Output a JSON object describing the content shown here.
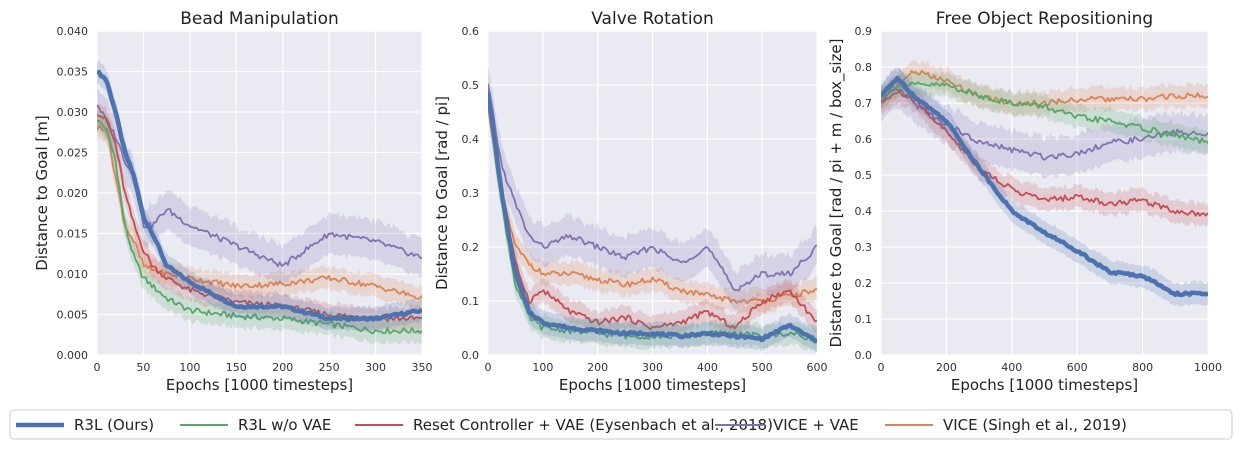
{
  "legend": [
    {
      "name": "R3L (Ours)",
      "color": "#4c72b0"
    },
    {
      "name": "R3L w/o VAE",
      "color": "#55a868"
    },
    {
      "name": "Reset Controller + VAE (Eysenbach et al., 2018)",
      "color": "#c44e52"
    },
    {
      "name": "VICE + VAE",
      "color": "#8172b2"
    },
    {
      "name": "VICE (Singh et al., 2019)",
      "color": "#dd8452"
    }
  ],
  "chart_data": [
    {
      "type": "line",
      "title": "Bead Manipulation",
      "xlabel": "Epochs [1000 timesteps]",
      "ylabel": "Distance to Goal [m]",
      "xlim": [
        0,
        350
      ],
      "ylim": [
        0,
        0.04
      ],
      "grid": true,
      "xticks": [
        "0",
        "50",
        "100",
        "150",
        "200",
        "250",
        "300",
        "350"
      ],
      "yticks": [
        "0.000",
        "0.005",
        "0.010",
        "0.015",
        "0.020",
        "0.025",
        "0.030",
        "0.035",
        "0.040"
      ],
      "x": [
        0,
        10,
        20,
        30,
        40,
        50,
        60,
        75,
        100,
        150,
        200,
        250,
        300,
        350
      ],
      "series": [
        {
          "name": "R3L (Ours)",
          "values": [
            0.035,
            0.034,
            0.03,
            0.025,
            0.022,
            0.017,
            0.015,
            0.011,
            0.009,
            0.006,
            0.006,
            0.0045,
            0.0045,
            0.0055
          ]
        },
        {
          "name": "R3L w/o VAE",
          "values": [
            0.029,
            0.028,
            0.024,
            0.016,
            0.012,
            0.0095,
            0.0085,
            0.007,
            0.0055,
            0.0048,
            0.0045,
            0.0038,
            0.003,
            0.003
          ]
        },
        {
          "name": "Reset Controller + VAE (Eysenbach et al., 2018)",
          "values": [
            0.03,
            0.029,
            0.026,
            0.02,
            0.016,
            0.013,
            0.011,
            0.0095,
            0.008,
            0.0065,
            0.006,
            0.005,
            0.0045,
            0.0045
          ]
        },
        {
          "name": "VICE + VAE",
          "values": [
            0.031,
            0.029,
            0.027,
            0.024,
            0.022,
            0.016,
            0.016,
            0.018,
            0.016,
            0.0135,
            0.011,
            0.015,
            0.014,
            0.012
          ]
        },
        {
          "name": "VICE (Singh et al., 2019)",
          "values": [
            0.028,
            0.028,
            0.022,
            0.016,
            0.014,
            0.011,
            0.0105,
            0.01,
            0.0095,
            0.0085,
            0.0088,
            0.0095,
            0.0085,
            0.007
          ]
        }
      ]
    },
    {
      "type": "line",
      "title": "Valve Rotation",
      "xlabel": "Epochs [1000 timesteps]",
      "ylabel": "Distance to Goal [rad / pi]",
      "xlim": [
        0,
        600
      ],
      "ylim": [
        0,
        0.6
      ],
      "grid": true,
      "xticks": [
        "0",
        "100",
        "200",
        "300",
        "400",
        "500",
        "600"
      ],
      "yticks": [
        "0.0",
        "0.1",
        "0.2",
        "0.3",
        "0.4",
        "0.5",
        "0.6"
      ],
      "x": [
        0,
        25,
        50,
        75,
        100,
        150,
        200,
        250,
        300,
        350,
        400,
        450,
        500,
        550,
        600
      ],
      "series": [
        {
          "name": "R3L (Ours)",
          "values": [
            0.49,
            0.3,
            0.15,
            0.08,
            0.06,
            0.05,
            0.045,
            0.04,
            0.04,
            0.035,
            0.04,
            0.035,
            0.03,
            0.055,
            0.025
          ]
        },
        {
          "name": "R3L w/o VAE",
          "values": [
            0.47,
            0.28,
            0.13,
            0.07,
            0.05,
            0.045,
            0.04,
            0.035,
            0.035,
            0.035,
            0.04,
            0.04,
            0.035,
            0.04,
            0.03
          ]
        },
        {
          "name": "Reset Controller + VAE (Eysenbach et al., 2018)",
          "values": [
            0.48,
            0.3,
            0.17,
            0.1,
            0.12,
            0.08,
            0.06,
            0.07,
            0.05,
            0.06,
            0.08,
            0.05,
            0.1,
            0.12,
            0.06
          ]
        },
        {
          "name": "VICE + VAE",
          "values": [
            0.5,
            0.35,
            0.28,
            0.22,
            0.2,
            0.22,
            0.2,
            0.18,
            0.2,
            0.17,
            0.2,
            0.12,
            0.15,
            0.15,
            0.2
          ]
        },
        {
          "name": "VICE (Singh et al., 2019)",
          "values": [
            0.46,
            0.3,
            0.2,
            0.17,
            0.15,
            0.15,
            0.14,
            0.13,
            0.14,
            0.12,
            0.11,
            0.1,
            0.1,
            0.11,
            0.12
          ]
        }
      ]
    },
    {
      "type": "line",
      "title": "Free Object Repositioning",
      "xlabel": "Epochs [1000 timesteps]",
      "ylabel": "Distance to Goal [rad / pi + m / box_size]",
      "xlim": [
        0,
        1000
      ],
      "ylim": [
        0,
        0.9
      ],
      "grid": true,
      "xticks": [
        "0",
        "200",
        "400",
        "600",
        "800",
        "1000"
      ],
      "yticks": [
        "0.0",
        "0.1",
        "0.2",
        "0.3",
        "0.4",
        "0.5",
        "0.6",
        "0.7",
        "0.8",
        "0.9"
      ],
      "x": [
        0,
        50,
        100,
        200,
        300,
        400,
        500,
        600,
        700,
        800,
        900,
        1000
      ],
      "series": [
        {
          "name": "R3L (Ours)",
          "values": [
            0.72,
            0.77,
            0.72,
            0.65,
            0.52,
            0.4,
            0.34,
            0.29,
            0.23,
            0.22,
            0.17,
            0.17
          ]
        },
        {
          "name": "R3L w/o VAE",
          "values": [
            0.72,
            0.75,
            0.75,
            0.75,
            0.72,
            0.7,
            0.69,
            0.66,
            0.65,
            0.63,
            0.61,
            0.59
          ]
        },
        {
          "name": "Reset Controller + VAE (Eysenbach et al., 2018)",
          "values": [
            0.7,
            0.73,
            0.71,
            0.62,
            0.52,
            0.46,
            0.43,
            0.44,
            0.42,
            0.43,
            0.4,
            0.39
          ]
        },
        {
          "name": "VICE + VAE",
          "values": [
            0.7,
            0.74,
            0.7,
            0.64,
            0.59,
            0.57,
            0.55,
            0.56,
            0.59,
            0.6,
            0.62,
            0.61
          ]
        },
        {
          "name": "VICE (Singh et al., 2019)",
          "values": [
            0.71,
            0.75,
            0.79,
            0.76,
            0.72,
            0.7,
            0.7,
            0.71,
            0.71,
            0.71,
            0.72,
            0.72
          ]
        }
      ]
    }
  ]
}
